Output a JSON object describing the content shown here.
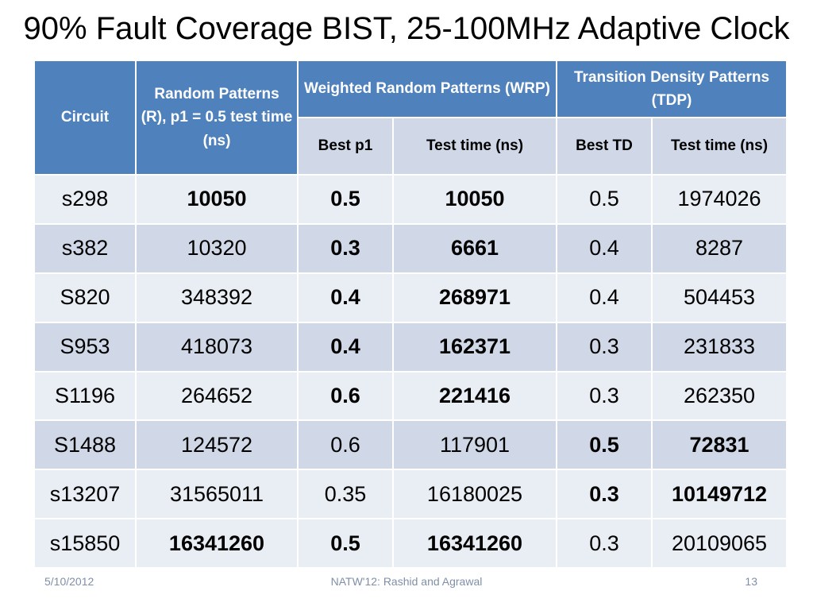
{
  "title": "90% Fault Coverage BIST, 25-100MHz Adaptive Clock",
  "table": {
    "headers": {
      "circuit": "Circuit",
      "random_patterns": "Random Patterns (R), p1 = 0.5 test time (ns)",
      "wrp": "Weighted Random Patterns (WRP)",
      "tdp": "Transition Density Patterns (TDP)",
      "best_p1": "Best  p1",
      "wrp_time": "Test time (ns)",
      "best_td": "Best TD",
      "tdp_time": "Test time (ns)"
    },
    "rows": [
      {
        "circuit": "s298",
        "r_time": "10050",
        "best_p1": "0.5",
        "wrp_time": "10050",
        "best_td": "0.5",
        "tdp_time": "1974026"
      },
      {
        "circuit": "s382",
        "r_time": "10320",
        "best_p1": "0.3",
        "wrp_time": "6661",
        "best_td": "0.4",
        "tdp_time": "8287"
      },
      {
        "circuit": "S820",
        "r_time": "348392",
        "best_p1": "0.4",
        "wrp_time": "268971",
        "best_td": "0.4",
        "tdp_time": "504453"
      },
      {
        "circuit": "S953",
        "r_time": "418073",
        "best_p1": "0.4",
        "wrp_time": "162371",
        "best_td": "0.3",
        "tdp_time": "231833"
      },
      {
        "circuit": "S1196",
        "r_time": "264652",
        "best_p1": "0.6",
        "wrp_time": "221416",
        "best_td": "0.3",
        "tdp_time": "262350"
      },
      {
        "circuit": "S1488",
        "r_time": "124572",
        "best_p1": "0.6",
        "wrp_time": "117901",
        "best_td": "0.5",
        "tdp_time": "72831"
      },
      {
        "circuit": "s13207",
        "r_time": "31565011",
        "best_p1": "0.35",
        "wrp_time": "16180025",
        "best_td": "0.3",
        "tdp_time": "10149712"
      },
      {
        "circuit": "s15850",
        "r_time": "16341260",
        "best_p1": "0.5",
        "wrp_time": "16341260",
        "best_td": "0.3",
        "tdp_time": "20109065"
      }
    ]
  },
  "footer": {
    "date": "5/10/2012",
    "center": "NATW'12: Rashid and Agrawal",
    "page": "13"
  },
  "colors": {
    "header_blue": "#4f81bd",
    "row_light": "#e9edf4",
    "row_dark": "#d0d8e8",
    "footer_text": "#7f8fa9"
  }
}
